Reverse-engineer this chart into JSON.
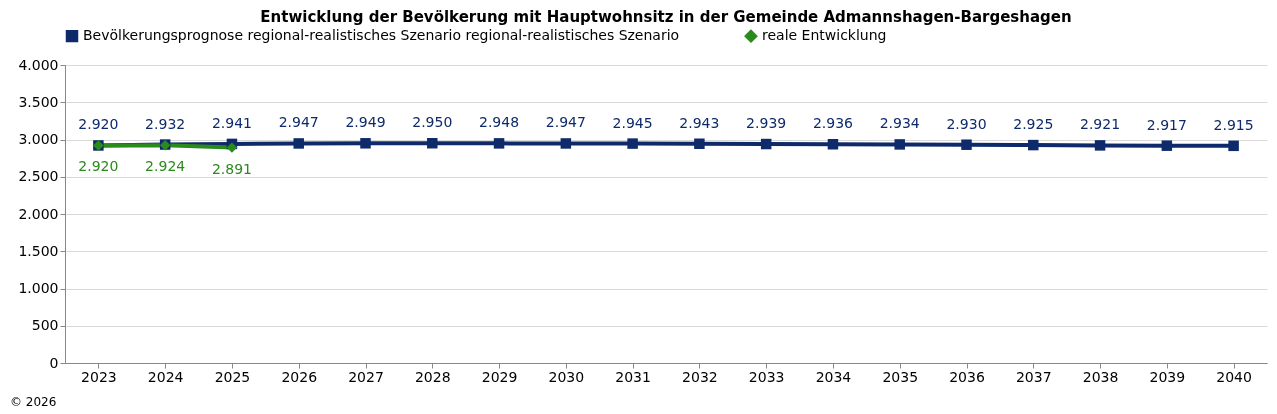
{
  "chart_data": {
    "type": "line",
    "title": "Entwicklung der Bevölkerung mit Hauptwohnsitz in der Gemeinde Admannshagen-Bargeshagen",
    "categories": [
      "2023",
      "2024",
      "2025",
      "2026",
      "2027",
      "2028",
      "2029",
      "2030",
      "2031",
      "2032",
      "2033",
      "2034",
      "2035",
      "2036",
      "2037",
      "2038",
      "2039",
      "2040"
    ],
    "series": [
      {
        "name": "Bevölkerungsprognose regional-realistisches Szenario regional-realistisches Szenario",
        "color": "#0e2a6b",
        "marker": "square",
        "values": [
          2920,
          2932,
          2941,
          2947,
          2949,
          2950,
          2948,
          2947,
          2945,
          2943,
          2939,
          2936,
          2934,
          2930,
          2925,
          2921,
          2917,
          2915
        ],
        "value_labels": [
          "2.920",
          "2.932",
          "2.941",
          "2.947",
          "2.949",
          "2.950",
          "2.948",
          "2.947",
          "2.945",
          "2.943",
          "2.939",
          "2.936",
          "2.934",
          "2.930",
          "2.925",
          "2.921",
          "2.917",
          "2.915"
        ]
      },
      {
        "name": "reale Entwicklung",
        "color": "#2b8a1c",
        "marker": "diamond",
        "values": [
          2920,
          2924,
          2891,
          null,
          null,
          null,
          null,
          null,
          null,
          null,
          null,
          null,
          null,
          null,
          null,
          null,
          null,
          null
        ],
        "value_labels": [
          "2.920",
          "2.924",
          "2.891",
          null,
          null,
          null,
          null,
          null,
          null,
          null,
          null,
          null,
          null,
          null,
          null,
          null,
          null,
          null
        ]
      }
    ],
    "ylim": [
      0,
      4000
    ],
    "yticks": [
      {
        "value": 0,
        "label": "0"
      },
      {
        "value": 500,
        "label": "500"
      },
      {
        "value": 1000,
        "label": "1.000"
      },
      {
        "value": 1500,
        "label": "1.500"
      },
      {
        "value": 2000,
        "label": "2.000"
      },
      {
        "value": 2500,
        "label": "2.500"
      },
      {
        "value": 3000,
        "label": "3.000"
      },
      {
        "value": 3500,
        "label": "3.500"
      },
      {
        "value": 4000,
        "label": "4.000"
      }
    ],
    "grid": "y",
    "legend": "top",
    "line_style": "solid",
    "annotations": [
      "© 2026"
    ]
  }
}
